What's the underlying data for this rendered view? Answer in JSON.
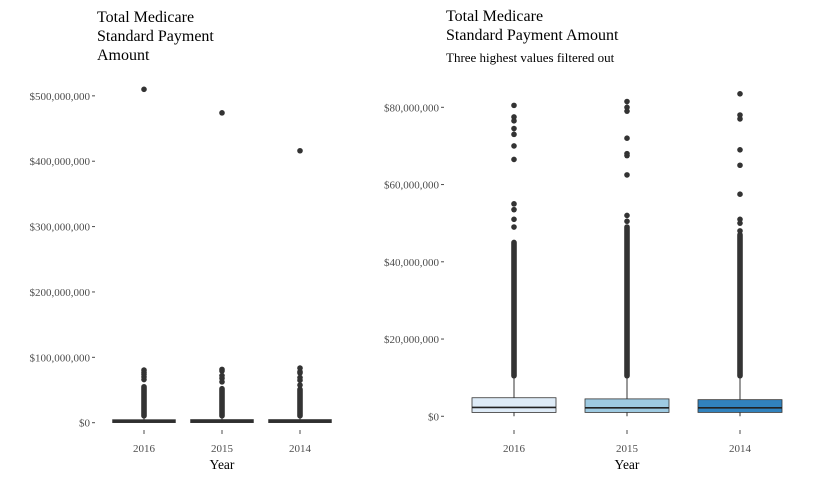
{
  "chart_data": [
    {
      "type": "box",
      "title_lines": [
        "Total Medicare",
        "Standard Payment",
        "Amount"
      ],
      "subtitle": "",
      "xlabel": "Year",
      "ylabel": "",
      "categories": [
        "2016",
        "2015",
        "2014"
      ],
      "ylim": [
        -2000000,
        512000000
      ],
      "yticks": [
        0,
        100000000,
        200000000,
        300000000,
        400000000,
        500000000
      ],
      "ytick_labels": [
        "$0",
        "$100,000,000",
        "$200,000,000",
        "$300,000,000",
        "$400,000,000",
        "$500,000,000"
      ],
      "legend": "none",
      "grid": false,
      "boxes": [
        {
          "category": "2016",
          "q1": 700000,
          "median": 2000000,
          "q3": 4000000,
          "whisker_low": 0,
          "whisker_high": 10000000,
          "fill": "#2f2f2f",
          "outliers": [
            510000000,
            80500000,
            77000000,
            74000000,
            70000000,
            66000000
          ],
          "outlier_band": [
            10500000,
            55000000
          ]
        },
        {
          "category": "2015",
          "q1": 700000,
          "median": 2000000,
          "q3": 4200000,
          "whisker_low": 0,
          "whisker_high": 10000000,
          "fill": "#2f2f2f",
          "outliers": [
            474000000,
            81500000,
            79000000,
            72000000,
            68000000,
            62500000
          ],
          "outlier_band": [
            10500000,
            52000000
          ]
        },
        {
          "category": "2014",
          "q1": 700000,
          "median": 2000000,
          "q3": 4200000,
          "whisker_low": 0,
          "whisker_high": 10000000,
          "fill": "#2f2f2f",
          "outliers": [
            416000000,
            83500000,
            78000000,
            76000000,
            69000000,
            65000000,
            57500000
          ],
          "outlier_band": [
            10500000,
            51000000
          ]
        }
      ]
    },
    {
      "type": "box",
      "title_lines": [
        "Total Medicare",
        "Standard Payment Amount"
      ],
      "subtitle": "Three highest values filtered out",
      "xlabel": "Year",
      "ylabel": "",
      "categories": [
        "2016",
        "2015",
        "2014"
      ],
      "ylim": [
        -2000000,
        85000000
      ],
      "yticks": [
        0,
        20000000,
        40000000,
        60000000,
        80000000
      ],
      "ytick_labels": [
        "$0",
        "$20,000,000",
        "$40,000,000",
        "$60,000,000",
        "$80,000,000"
      ],
      "legend": "none",
      "grid": false,
      "boxes": [
        {
          "category": "2016",
          "q1": 1000000,
          "median": 2300000,
          "q3": 4800000,
          "whisker_low": 0,
          "whisker_high": 10000000,
          "fill": "#deebf7",
          "outliers": [
            80500000,
            77500000,
            76500000,
            74500000,
            73000000,
            70000000,
            66500000,
            55000000,
            53500000,
            51000000,
            49000000
          ],
          "outlier_band": [
            10500000,
            45000000
          ]
        },
        {
          "category": "2015",
          "q1": 1000000,
          "median": 2200000,
          "q3": 4500000,
          "whisker_low": 0,
          "whisker_high": 10000000,
          "fill": "#9ecae1",
          "outliers": [
            81500000,
            80000000,
            79000000,
            72000000,
            68000000,
            67500000,
            62500000,
            52000000,
            50500000
          ],
          "outlier_band": [
            10500000,
            49000000
          ]
        },
        {
          "category": "2014",
          "q1": 1000000,
          "median": 2200000,
          "q3": 4300000,
          "whisker_low": 0,
          "whisker_high": 10000000,
          "fill": "#3182bd",
          "outliers": [
            83500000,
            78000000,
            77000000,
            69000000,
            65000000,
            57500000,
            51000000,
            50000000,
            48000000
          ],
          "outlier_band": [
            10500000,
            47000000
          ]
        }
      ]
    }
  ]
}
